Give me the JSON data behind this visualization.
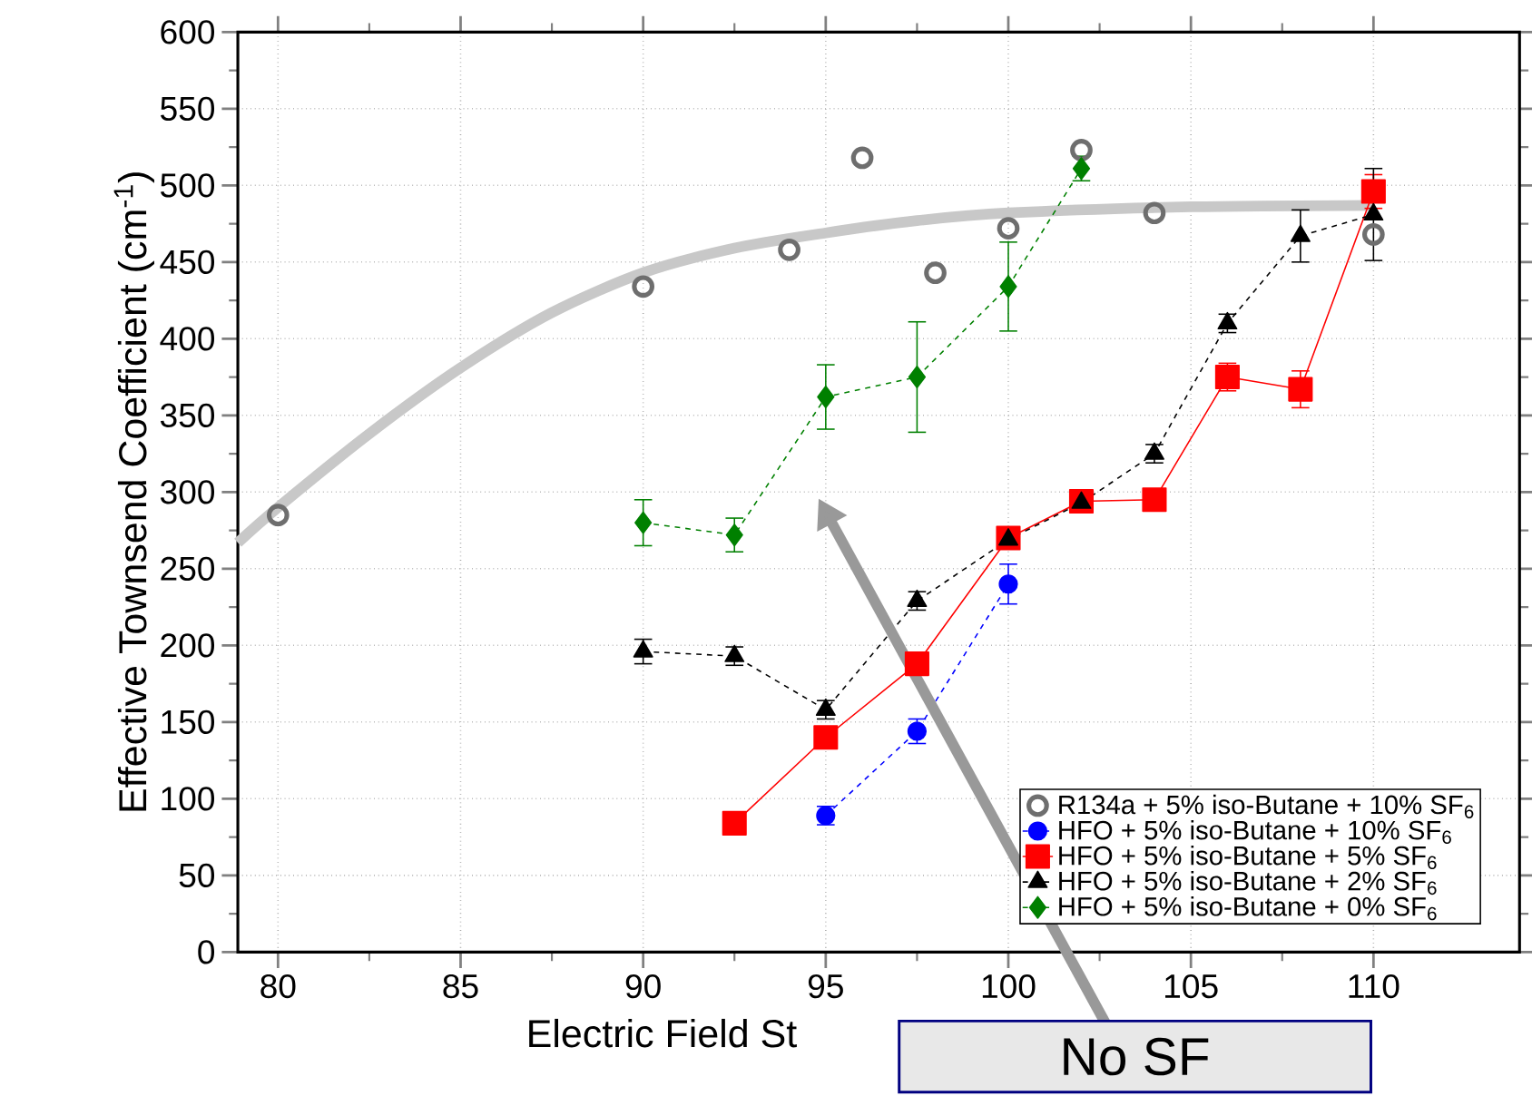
{
  "chart_data": {
    "type": "line",
    "xlabel": "Electric Field St",
    "ylabel": "Effective Townsend Coefficient (cm$^{-1}$)",
    "xlim": [
      78.9,
      114
    ],
    "ylim": [
      0,
      600
    ],
    "xticks": [
      80,
      85,
      90,
      95,
      100,
      105,
      110
    ],
    "yticks": [
      0,
      50,
      100,
      150,
      200,
      250,
      300,
      350,
      400,
      450,
      500,
      550,
      600
    ],
    "grid": true,
    "legend": "bottom right",
    "annotations": [
      "No SF"
    ],
    "series": [
      {
        "type": "line",
        "color": "#c8c8c8",
        "marker": "none",
        "line_style": "solid",
        "x": [
          78.9,
          80,
          82.5,
          85,
          87.5,
          90,
          92.5,
          95,
          97.5,
          100,
          105,
          110
        ],
        "values": [
          267,
          290,
          338,
          381,
          417,
          443,
          459,
          469,
          477,
          482,
          486,
          487
        ]
      },
      {
        "type": "scatter",
        "name": "R134a + 5% iso-Butane + 10% SF$_{6}$",
        "color": "#6e6e6e",
        "marker": "circle",
        "x": [
          80,
          90,
          94,
          96,
          98,
          100,
          102,
          104,
          110
        ],
        "values": [
          285,
          434,
          458,
          518,
          443,
          472,
          523,
          482,
          468
        ]
      },
      {
        "name": "HFO + 5% iso-Butane + 10% SF$_{6}$",
        "color": "#0000ff",
        "marker": "circle",
        "line_style": "dashed",
        "x": [
          95,
          97.5,
          100
        ],
        "values": [
          89,
          144,
          240
        ],
        "errors": [
          6,
          8,
          13
        ]
      },
      {
        "name": "HFO + 5% iso-Butane + 5% SF$_{6}$",
        "color": "#ff0000",
        "marker": "square",
        "line_style": "solid",
        "x": [
          92.5,
          95,
          97.5,
          100,
          102,
          104,
          106,
          108,
          110
        ],
        "values": [
          84,
          140,
          188,
          270,
          294,
          295,
          375,
          367,
          496
        ],
        "errors": [
          null,
          null,
          null,
          null,
          null,
          null,
          9,
          12,
          11
        ]
      },
      {
        "name": "HFO + 5% iso-Butane + 2% SF$_{6}$",
        "color": "#000000",
        "marker": "triangle",
        "line_style": "dashed",
        "x": [
          90,
          92.5,
          95,
          97.5,
          100,
          102,
          104,
          106,
          108,
          110
        ],
        "values": [
          196,
          193,
          158,
          229,
          269,
          293,
          325,
          410,
          467,
          481
        ],
        "errors": [
          8,
          6,
          6,
          6,
          4,
          5,
          6,
          6,
          17,
          30
        ]
      },
      {
        "name": "HFO + 5% iso-Butane + 0% SF$_{6}$",
        "color": "#008000",
        "marker": "diamond",
        "line_style": "dashed",
        "x": [
          90,
          92.5,
          95,
          97.5,
          100,
          102
        ],
        "values": [
          280,
          272,
          362,
          375,
          434,
          511
        ],
        "errors": [
          15,
          11,
          21,
          36,
          29,
          8
        ]
      }
    ]
  }
}
